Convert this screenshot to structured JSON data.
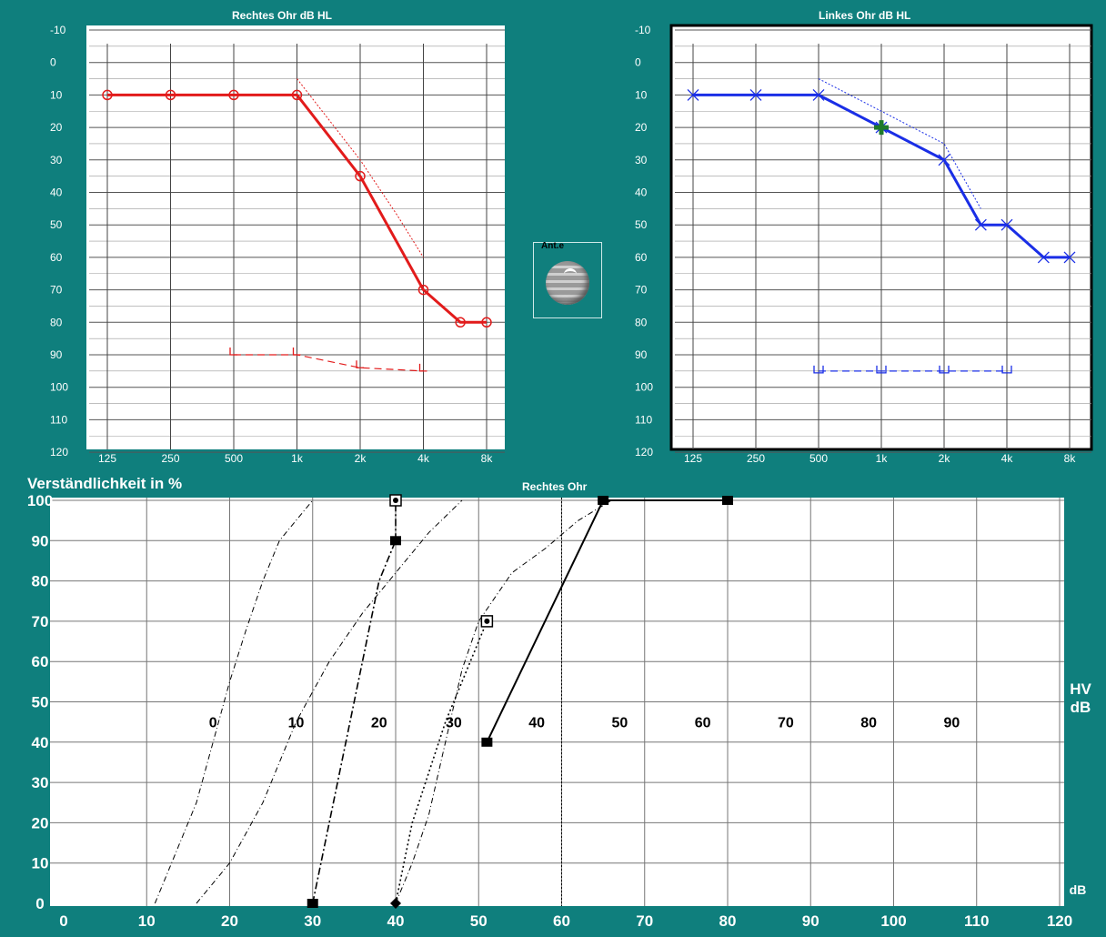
{
  "audiograms": {
    "right": {
      "title": "Rechtes Ohr   dB HL",
      "color": "#e21b1b",
      "freq_labels": [
        "125",
        "250",
        "500",
        "1k",
        "2k",
        "4k",
        "8k"
      ],
      "db_labels": [
        "-10",
        "0",
        "10",
        "20",
        "30",
        "40",
        "50",
        "60",
        "70",
        "80",
        "90",
        "100",
        "110",
        "120"
      ],
      "air": {
        "f": [
          125,
          250,
          500,
          1000,
          2000,
          4000,
          6000,
          8000
        ],
        "db": [
          10,
          10,
          10,
          10,
          35,
          70,
          80,
          80
        ]
      },
      "air_dotted": {
        "f": [
          1000,
          2000,
          3000,
          4000
        ],
        "db": [
          5,
          30,
          47,
          60
        ]
      },
      "bone": {
        "f": [
          500,
          1000,
          2000,
          4000
        ],
        "db": [
          90,
          90,
          94,
          95
        ]
      }
    },
    "left": {
      "title": "Linkes Ohr   dB HL",
      "color": "#1a2ee6",
      "freq_labels": [
        "125",
        "250",
        "500",
        "1k",
        "2k",
        "4k",
        "8k"
      ],
      "db_labels": [
        "-10",
        "0",
        "10",
        "20",
        "30",
        "40",
        "50",
        "60",
        "70",
        "80",
        "90",
        "100",
        "110",
        "120"
      ],
      "air": {
        "f": [
          125,
          250,
          500,
          1000,
          2000,
          3000,
          4000,
          6000,
          8000
        ],
        "db": [
          10,
          10,
          10,
          20,
          30,
          50,
          50,
          60,
          60
        ]
      },
      "air_dotted": {
        "f": [
          500,
          1000,
          2000,
          3000
        ],
        "db": [
          5,
          15,
          25,
          45
        ]
      },
      "bone": {
        "f": [
          500,
          1000,
          2000,
          4000
        ],
        "db": [
          95,
          95,
          95,
          95
        ]
      },
      "marker": {
        "f": 1000,
        "db": 20,
        "color": "#1f7a2a"
      }
    }
  },
  "ear_widget": {
    "label": "Ant.e"
  },
  "chart_data": {
    "type": "line",
    "title": "Rechtes Ohr",
    "ylabel": "Verständlichkeit in %",
    "xlabel": "dB",
    "xlim": [
      0,
      120
    ],
    "ylim": [
      0,
      100
    ],
    "x_ticks": [
      "0",
      "10",
      "20",
      "30",
      "40",
      "50",
      "60",
      "70",
      "80",
      "90",
      "100",
      "110",
      "120"
    ],
    "y_ticks": [
      "0",
      "10",
      "20",
      "30",
      "40",
      "50",
      "60",
      "70",
      "80",
      "90",
      "100"
    ],
    "hv_axis": {
      "label_line1": "HV",
      "label_line2": "dB",
      "ticks": [
        "0",
        "10",
        "20",
        "30",
        "40",
        "50",
        "60",
        "70",
        "80",
        "90"
      ],
      "tick_x": [
        18,
        28,
        38,
        47,
        57,
        67,
        77,
        87,
        97,
        107
      ],
      "y_value": 45
    },
    "reference_line_x": 60,
    "normal_curves": [
      {
        "x": [
          11,
          13,
          16,
          18,
          20,
          22,
          24,
          26,
          30
        ],
        "y": [
          0,
          10,
          25,
          40,
          55,
          68,
          80,
          90,
          100
        ]
      },
      {
        "x": [
          16,
          20,
          24,
          28,
          32,
          36,
          40,
          44,
          48
        ],
        "y": [
          0,
          10,
          25,
          45,
          60,
          72,
          82,
          92,
          100
        ]
      },
      {
        "x": [
          40,
          42,
          44,
          46,
          48,
          50,
          52,
          54,
          58,
          62,
          66
        ],
        "y": [
          0,
          10,
          22,
          40,
          58,
          70,
          76,
          82,
          88,
          95,
          100
        ]
      }
    ],
    "series": [
      {
        "x": [
          30,
          32,
          34,
          36,
          38,
          40
        ],
        "y": [
          0,
          20,
          40,
          60,
          80,
          90
        ],
        "style": "dashdot"
      },
      {
        "x": [
          40,
          40
        ],
        "y": [
          90,
          100
        ],
        "style": "dashdot"
      },
      {
        "x": [
          40,
          42,
          46,
          50,
          51
        ],
        "y": [
          0,
          20,
          45,
          65,
          70
        ],
        "style": "dotted"
      },
      {
        "x": [
          51,
          65,
          80
        ],
        "y": [
          40,
          100,
          100
        ],
        "style": "solid"
      }
    ],
    "points": [
      {
        "x": 30,
        "y": 0,
        "shape": "filled-square"
      },
      {
        "x": 40,
        "y": 90,
        "shape": "filled-square"
      },
      {
        "x": 40,
        "y": 100,
        "shape": "open-square-dot"
      },
      {
        "x": 40,
        "y": 0,
        "shape": "filled-diamond"
      },
      {
        "x": 51,
        "y": 70,
        "shape": "open-square-dot"
      },
      {
        "x": 51,
        "y": 40,
        "shape": "filled-square"
      },
      {
        "x": 65,
        "y": 100,
        "shape": "filled-square"
      },
      {
        "x": 80,
        "y": 100,
        "shape": "filled-square"
      }
    ]
  }
}
